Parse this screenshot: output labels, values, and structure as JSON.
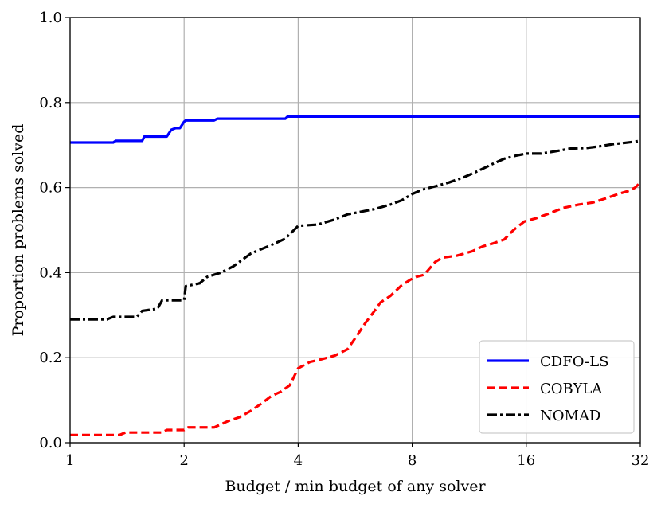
{
  "chart_data": {
    "type": "line",
    "title": "",
    "xlabel": "Budget / min budget of any solver",
    "ylabel": "Proportion problems solved",
    "xscale": "log2",
    "xlim": [
      1,
      32
    ],
    "ylim": [
      0,
      1
    ],
    "grid": true,
    "legend_position": "bottom-right",
    "xticks": [
      {
        "value": 1,
        "label": "1"
      },
      {
        "value": 2,
        "label": "2"
      },
      {
        "value": 4,
        "label": "4"
      },
      {
        "value": 8,
        "label": "8"
      },
      {
        "value": 16,
        "label": "16"
      },
      {
        "value": 32,
        "label": "32"
      }
    ],
    "yticks": [
      {
        "value": 0.0,
        "label": "0.0"
      },
      {
        "value": 0.2,
        "label": "0.2"
      },
      {
        "value": 0.4,
        "label": "0.4"
      },
      {
        "value": 0.6,
        "label": "0.6"
      },
      {
        "value": 0.8,
        "label": "0.8"
      },
      {
        "value": 1.0,
        "label": "1.0"
      }
    ],
    "series": [
      {
        "name": "CDFO-LS",
        "color": "#0000ff",
        "style": "solid",
        "x": [
          1,
          1.3,
          1.32,
          1.55,
          1.57,
          1.8,
          1.85,
          1.9,
          1.95,
          2.0,
          2.02,
          2.4,
          2.45,
          3.7,
          3.75,
          32
        ],
        "y": [
          0.706,
          0.706,
          0.71,
          0.71,
          0.72,
          0.72,
          0.736,
          0.74,
          0.74,
          0.755,
          0.758,
          0.758,
          0.762,
          0.762,
          0.767,
          0.767
        ]
      },
      {
        "name": "COBYLA",
        "color": "#ff0000",
        "style": "dashed",
        "x": [
          1,
          1.35,
          1.4,
          1.75,
          1.8,
          2.0,
          2.05,
          2.4,
          2.6,
          2.8,
          3.0,
          3.2,
          3.4,
          3.6,
          3.8,
          4.0,
          4.3,
          4.6,
          5.0,
          5.4,
          5.7,
          6.0,
          6.3,
          6.6,
          7.0,
          7.5,
          7.9,
          8.2,
          8.6,
          9.2,
          9.6,
          10.5,
          11.5,
          12.3,
          13.0,
          14.0,
          14.8,
          15.8,
          17.0,
          18.5,
          20.0,
          22.0,
          24.0,
          26.0,
          28.0,
          30.0,
          31.0,
          32.0
        ],
        "y": [
          0.018,
          0.018,
          0.024,
          0.024,
          0.03,
          0.03,
          0.036,
          0.036,
          0.05,
          0.06,
          0.075,
          0.092,
          0.11,
          0.12,
          0.135,
          0.175,
          0.19,
          0.196,
          0.205,
          0.22,
          0.25,
          0.28,
          0.305,
          0.33,
          0.345,
          0.37,
          0.383,
          0.39,
          0.395,
          0.425,
          0.435,
          0.44,
          0.45,
          0.462,
          0.468,
          0.478,
          0.5,
          0.52,
          0.528,
          0.54,
          0.552,
          0.56,
          0.565,
          0.575,
          0.585,
          0.593,
          0.6,
          0.612
        ]
      },
      {
        "name": "NOMAD",
        "color": "#000000",
        "style": "dashdot",
        "x": [
          1,
          1.25,
          1.3,
          1.5,
          1.55,
          1.7,
          1.75,
          2.0,
          2.02,
          2.2,
          2.3,
          2.5,
          2.7,
          3.0,
          3.4,
          3.7,
          4.0,
          4.5,
          5.0,
          5.4,
          6.0,
          6.4,
          7.0,
          7.5,
          8.0,
          8.5,
          9.2,
          10.0,
          11.0,
          12.0,
          13.0,
          14.0,
          15.0,
          16.0,
          17.5,
          19.0,
          21.0,
          23.0,
          25.0,
          27.0,
          29.0,
          31.0,
          32.0
        ],
        "y": [
          0.29,
          0.29,
          0.296,
          0.296,
          0.31,
          0.315,
          0.335,
          0.335,
          0.368,
          0.375,
          0.39,
          0.4,
          0.415,
          0.445,
          0.465,
          0.48,
          0.51,
          0.513,
          0.525,
          0.537,
          0.545,
          0.55,
          0.56,
          0.57,
          0.585,
          0.595,
          0.603,
          0.612,
          0.625,
          0.64,
          0.655,
          0.668,
          0.675,
          0.68,
          0.68,
          0.685,
          0.692,
          0.693,
          0.697,
          0.702,
          0.705,
          0.708,
          0.71
        ]
      }
    ]
  }
}
